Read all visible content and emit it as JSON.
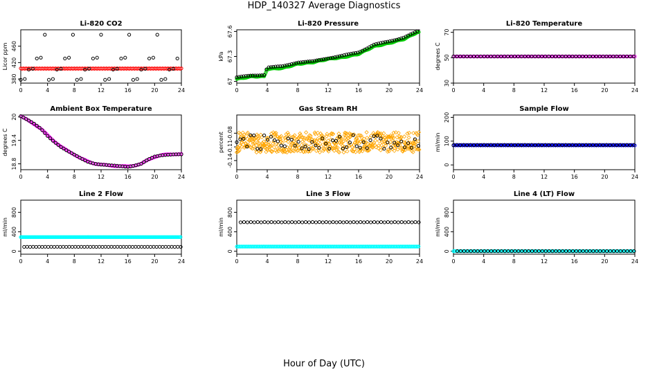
{
  "title": "HDP_140327  Average Diagnostics",
  "xlabel": "Hour of Day (UTC)",
  "chart_data": [
    {
      "type": "scatter",
      "title": "Li-820 CO2",
      "ylabel": "Licor ppm",
      "xlim": [
        0,
        24
      ],
      "ylim": [
        370,
        500
      ],
      "xticks": [
        0,
        4,
        8,
        12,
        16,
        20,
        24
      ],
      "yticks": [
        380,
        420,
        460
      ],
      "series": [
        {
          "color": "#ff0000",
          "marker": "circle",
          "pattern": "flat",
          "start": 0,
          "end": 24,
          "step": 0.2,
          "values": [
            406,
            405
          ]
        },
        {
          "color": "#000000",
          "marker": "circle",
          "pattern": "band",
          "start": 0,
          "end": 24,
          "step": 0.6,
          "values": [
            378,
            380,
            403,
            405,
            430,
            432,
            488
          ]
        }
      ]
    },
    {
      "type": "scatter",
      "title": "Li-820 Pressure",
      "ylabel": "kPa",
      "xlim": [
        0,
        24
      ],
      "ylim": [
        66.98,
        67.62
      ],
      "xticks": [
        0,
        4,
        8,
        12,
        16,
        20,
        24
      ],
      "yticks": [
        67.0,
        67.3,
        67.6
      ],
      "series": [
        {
          "color": "#00cc00",
          "marker": "circle",
          "pattern": "trend",
          "start": 0,
          "end": 24,
          "step": 0.1,
          "trend": {
            "x": [
              0,
              2,
              3.6,
              4,
              6,
              8,
              10,
              12,
              14,
              16,
              18,
              20,
              22,
              23.7
            ],
            "y": [
              67.03,
              67.06,
              67.06,
              67.15,
              67.16,
              67.21,
              67.23,
              67.27,
              67.29,
              67.33,
              67.42,
              67.46,
              67.51,
              67.59
            ]
          }
        },
        {
          "color": "#000000",
          "marker": "circle",
          "pattern": "trend",
          "start": 0,
          "end": 24,
          "step": 0.3,
          "trend": {
            "x": [
              0,
              2,
              3.6,
              4,
              6,
              8,
              10,
              12,
              14,
              16,
              18,
              20,
              22,
              24
            ],
            "y": [
              67.05,
              67.07,
              67.08,
              67.17,
              67.18,
              67.23,
              67.24,
              67.28,
              67.31,
              67.35,
              67.44,
              67.48,
              67.53,
              67.61
            ]
          }
        }
      ]
    },
    {
      "type": "scatter",
      "title": "Li-820 Temperature",
      "ylabel": "degrees C",
      "xlim": [
        0,
        24
      ],
      "ylim": [
        30,
        72
      ],
      "xticks": [
        0,
        4,
        8,
        12,
        16,
        20,
        24
      ],
      "yticks": [
        30,
        50,
        70
      ],
      "series": [
        {
          "color": "#ff00ff",
          "marker": "circle",
          "pattern": "flat",
          "start": 0,
          "end": 24,
          "step": 0.2,
          "values": [
            51,
            51
          ]
        },
        {
          "color": "#000000",
          "marker": "circle",
          "pattern": "flat",
          "start": 0,
          "end": 24,
          "step": 0.45,
          "values": [
            51,
            51
          ]
        }
      ]
    },
    {
      "type": "scatter",
      "title": "Ambient Box Temperature",
      "ylabel": "degrees C",
      "xlim": [
        0,
        24
      ],
      "ylim": [
        18.65,
        20.05
      ],
      "xticks": [
        0,
        4,
        8,
        12,
        16,
        20,
        24
      ],
      "yticks": [
        18.8,
        19.4,
        20.0
      ],
      "series": [
        {
          "color": "#ff00ff",
          "marker": "circle",
          "pattern": "trend",
          "start": 0,
          "end": 24,
          "step": 0.2,
          "trend": {
            "x": [
              0,
              1,
              2,
              3,
              4,
              5,
              6,
              7,
              8,
              9,
              10,
              11,
              12,
              13,
              14,
              15,
              16,
              17,
              18,
              19,
              20,
              21,
              22,
              23,
              24
            ],
            "y": [
              20.02,
              19.92,
              19.82,
              19.7,
              19.53,
              19.38,
              19.24,
              19.13,
              19.04,
              18.94,
              18.86,
              18.81,
              18.78,
              18.76,
              18.75,
              18.74,
              18.73,
              18.76,
              18.8,
              18.9,
              18.98,
              19.02,
              19.04,
              19.05,
              19.05
            ]
          }
        },
        {
          "color": "#000000",
          "marker": "circle",
          "pattern": "trend",
          "start": 0,
          "end": 24,
          "step": 0.4,
          "trend": {
            "x": [
              0,
              1,
              2,
              3,
              4,
              5,
              6,
              7,
              8,
              9,
              10,
              11,
              12,
              13,
              14,
              15,
              16,
              17,
              18,
              19,
              20,
              21,
              22,
              23,
              24
            ],
            "y": [
              20.02,
              19.92,
              19.82,
              19.7,
              19.52,
              19.37,
              19.23,
              19.12,
              19.03,
              18.94,
              18.86,
              18.81,
              18.78,
              18.76,
              18.75,
              18.74,
              18.73,
              18.76,
              18.8,
              18.9,
              18.98,
              19.02,
              19.04,
              19.05,
              19.04
            ]
          }
        }
      ]
    },
    {
      "type": "scatter",
      "title": "Gas Stream RH",
      "ylabel": "percent",
      "xlim": [
        0,
        24
      ],
      "ylim": [
        -0.16,
        -0.04
      ],
      "xticks": [
        0,
        4,
        8,
        12,
        16,
        20,
        24
      ],
      "yticks": [
        -0.14,
        -0.11,
        -0.08
      ],
      "series": [
        {
          "color": "#ffa500",
          "marker": "diamond",
          "pattern": "noise",
          "start": 0,
          "end": 24,
          "step": 0.05,
          "center": -0.1,
          "spread": 0.022
        },
        {
          "color": "#000000",
          "marker": "circle",
          "pattern": "noise",
          "start": 0,
          "end": 24,
          "step": 0.45,
          "center": -0.1,
          "spread": 0.016
        }
      ]
    },
    {
      "type": "scatter",
      "title": "Sample Flow",
      "ylabel": "ml/min",
      "xlim": [
        0,
        24
      ],
      "ylim": [
        -20,
        210
      ],
      "xticks": [
        0,
        4,
        8,
        12,
        16,
        20,
        24
      ],
      "yticks": [
        0,
        100,
        200
      ],
      "series": [
        {
          "color": "#0000ff",
          "marker": "circle",
          "pattern": "flat",
          "start": 0,
          "end": 24,
          "step": 0.15,
          "values": [
            82,
            84
          ]
        },
        {
          "color": "#000000",
          "marker": "circle",
          "pattern": "flat",
          "start": 0,
          "end": 24,
          "step": 0.45,
          "values": [
            83,
            84
          ]
        }
      ]
    },
    {
      "type": "scatter",
      "title": "Line 2 Flow",
      "ylabel": "ml/min",
      "xlim": [
        0,
        24
      ],
      "ylim": [
        -60,
        1050
      ],
      "xticks": [
        0,
        4,
        8,
        12,
        16,
        20,
        24
      ],
      "yticks": [
        0,
        400,
        800
      ],
      "series": [
        {
          "color": "#00ffff",
          "marker": "circle",
          "pattern": "flat",
          "start": 0,
          "end": 24,
          "step": 0.12,
          "values": [
            290,
            293
          ]
        },
        {
          "color": "#000000",
          "marker": "circle",
          "pattern": "flat",
          "start": 0.5,
          "end": 24,
          "step": 0.45,
          "values": [
            90,
            92
          ]
        }
      ]
    },
    {
      "type": "scatter",
      "title": "Line 3 Flow",
      "ylabel": "ml/min",
      "xlim": [
        0,
        24
      ],
      "ylim": [
        -60,
        1050
      ],
      "xticks": [
        0,
        4,
        8,
        12,
        16,
        20,
        24
      ],
      "yticks": [
        0,
        400,
        800
      ],
      "series": [
        {
          "color": "#00ffff",
          "marker": "circle",
          "pattern": "flat",
          "start": 0,
          "end": 24,
          "step": 0.12,
          "values": [
            95,
            98
          ]
        },
        {
          "color": "#000000",
          "marker": "circle",
          "pattern": "flat",
          "start": 0.5,
          "end": 24,
          "step": 0.45,
          "values": [
            595,
            600
          ]
        }
      ]
    },
    {
      "type": "scatter",
      "title": "Line 4 (LT) Flow",
      "ylabel": "ml/min",
      "xlim": [
        0,
        24
      ],
      "ylim": [
        -60,
        1050
      ],
      "xticks": [
        0,
        4,
        8,
        12,
        16,
        20,
        24
      ],
      "yticks": [
        0,
        400,
        800
      ],
      "series": [
        {
          "color": "#00ffff",
          "marker": "circle",
          "pattern": "flat",
          "start": 0,
          "end": 24,
          "step": 0.12,
          "values": [
            2,
            4
          ]
        },
        {
          "color": "#000000",
          "marker": "circle",
          "pattern": "flat",
          "start": 0.5,
          "end": 24,
          "step": 0.45,
          "values": [
            2,
            3
          ]
        }
      ]
    }
  ]
}
